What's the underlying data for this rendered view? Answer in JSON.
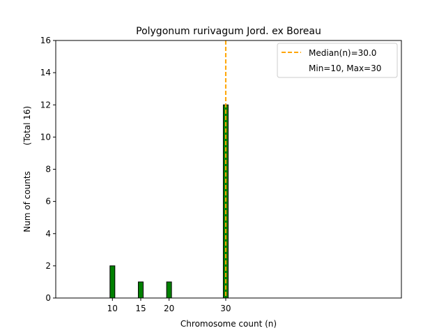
{
  "chart_data": {
    "type": "bar",
    "title": "Polygonum rurivagum Jord. ex Boreau",
    "xlabel": "Chromosome count (n)",
    "ylabel": "Num of counts",
    "ylabel_secondary": "(Total 16)",
    "x": [
      10,
      15,
      20,
      30
    ],
    "values": [
      2,
      1,
      1,
      12
    ],
    "xticks": [
      10,
      15,
      20,
      30
    ],
    "yticks": [
      0,
      2,
      4,
      6,
      8,
      10,
      12,
      14,
      16
    ],
    "xlim": [
      0,
      61
    ],
    "ylim": [
      0,
      16
    ],
    "bar_color": "#008000",
    "bar_edge_color": "#000000",
    "median_line": {
      "x": 30,
      "color": "#FFA500",
      "label": "Median(n)=30.0"
    },
    "legend": {
      "position": "upper-right",
      "entries": [
        "Median(n)=30.0",
        "Min=10, Max=30"
      ]
    },
    "grid": false
  }
}
